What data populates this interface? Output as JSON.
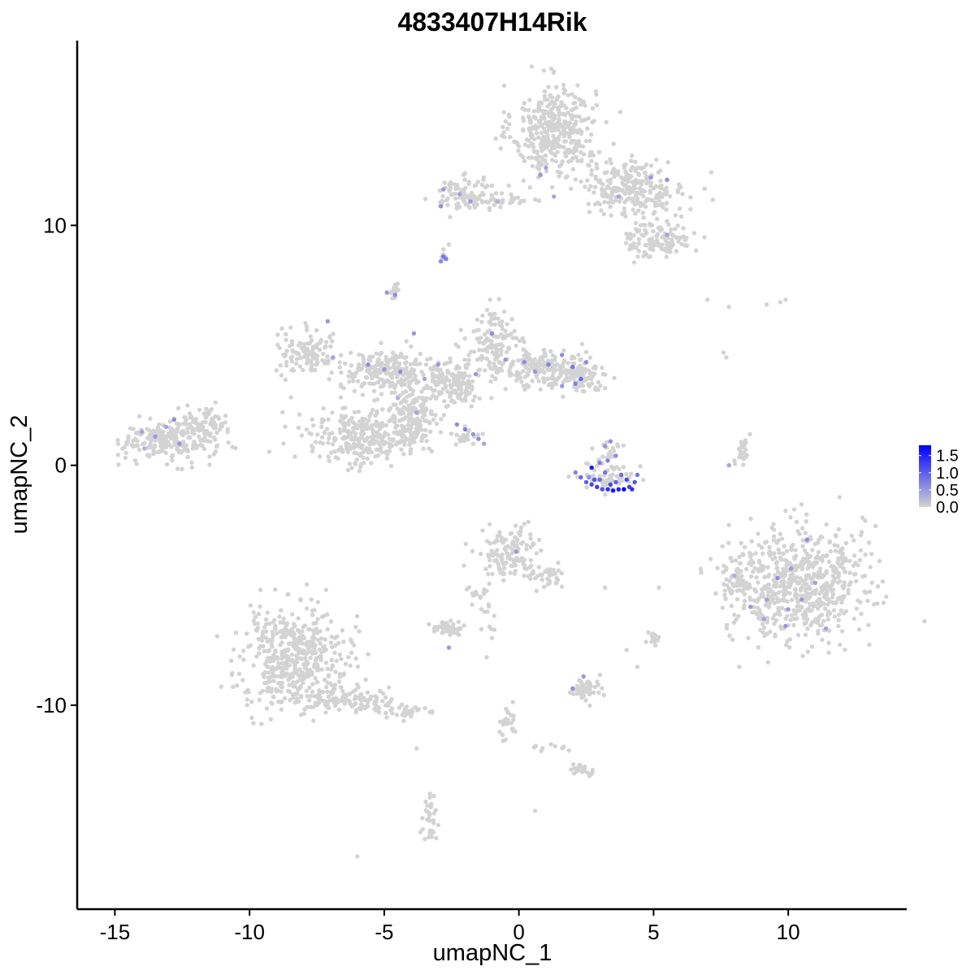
{
  "chart_data": {
    "type": "scatter",
    "title": "4833407H14Rik",
    "xlabel": "umapNC_1",
    "ylabel": "umapNC_2",
    "xlim": [
      -16.4,
      14.4
    ],
    "ylim": [
      -18.5,
      17.7
    ],
    "x_ticks": [
      -15,
      -10,
      -5,
      0,
      5,
      10
    ],
    "x_tick_labels": [
      "-15",
      "-10",
      "-5",
      "0",
      "5",
      "10"
    ],
    "y_ticks": [
      -10,
      0,
      10
    ],
    "y_tick_labels": [
      "-10",
      "0",
      "10"
    ],
    "grid": false,
    "legend_position": "right",
    "color_scale": {
      "low_color": "#d3d3d3",
      "high_color": "#0000ff",
      "min": 0,
      "max": 1.8,
      "ticks": [
        0.0,
        0.5,
        1.0,
        1.5
      ],
      "tick_labels": [
        "0.0",
        "0.5",
        "1.0",
        "1.5"
      ]
    },
    "clusters": [
      {
        "cx": 1.3,
        "cy": 14.0,
        "sx": 0.9,
        "sy": 1.1,
        "n": 380
      },
      {
        "cx": 4.2,
        "cy": 11.6,
        "sx": 1.2,
        "sy": 0.7,
        "n": 250
      },
      {
        "cx": 5.2,
        "cy": 9.4,
        "sx": 0.7,
        "sy": 0.45,
        "n": 120
      },
      {
        "cx": -1.9,
        "cy": 11.3,
        "sx": 0.8,
        "sy": 0.4,
        "n": 100
      },
      {
        "cx": -0.6,
        "cy": 11.0,
        "sx": 1.0,
        "sy": 0.12,
        "n": 30
      },
      {
        "cx": -2.8,
        "cy": 8.7,
        "sx": 0.06,
        "sy": 0.07,
        "n": 12
      },
      {
        "cx": -4.6,
        "cy": 7.3,
        "sx": 0.1,
        "sy": 0.2,
        "n": 15
      },
      {
        "cx": -13.0,
        "cy": 1.0,
        "sx": 1.0,
        "sy": 0.5,
        "n": 220
      },
      {
        "cx": -11.7,
        "cy": 1.8,
        "sx": 0.5,
        "sy": 0.4,
        "n": 70
      },
      {
        "cx": -7.8,
        "cy": 4.7,
        "sx": 0.7,
        "sy": 0.55,
        "n": 110
      },
      {
        "cx": -4.8,
        "cy": 3.9,
        "sx": 1.1,
        "sy": 0.45,
        "n": 220
      },
      {
        "cx": -6.0,
        "cy": 1.2,
        "sx": 1.2,
        "sy": 0.75,
        "n": 260
      },
      {
        "cx": -4.0,
        "cy": 1.8,
        "sx": 0.55,
        "sy": 0.9,
        "n": 150
      },
      {
        "cx": -2.6,
        "cy": 3.3,
        "sx": 0.7,
        "sy": 0.5,
        "n": 150
      },
      {
        "cx": -1.0,
        "cy": 5.0,
        "sx": 0.6,
        "sy": 0.8,
        "n": 130
      },
      {
        "cx": 0.9,
        "cy": 4.0,
        "sx": 0.9,
        "sy": 0.45,
        "n": 160
      },
      {
        "cx": 2.2,
        "cy": 3.8,
        "sx": 0.5,
        "sy": 0.45,
        "n": 90
      },
      {
        "cx": -1.8,
        "cy": 1.2,
        "sx": 0.4,
        "sy": 0.2,
        "n": 22
      },
      {
        "cx": 3.4,
        "cy": -0.5,
        "sx": 0.55,
        "sy": 0.35,
        "n": 60
      },
      {
        "cx": 3.4,
        "cy": 0.5,
        "sx": 0.25,
        "sy": 0.4,
        "n": 25
      },
      {
        "cx": 8.3,
        "cy": 0.6,
        "sx": 0.15,
        "sy": 0.4,
        "n": 25
      },
      {
        "cx": 10.3,
        "cy": -4.9,
        "sx": 1.5,
        "sy": 1.4,
        "n": 650
      },
      {
        "cx": 8.0,
        "cy": -4.9,
        "sx": 0.25,
        "sy": 0.6,
        "n": 30
      },
      {
        "cx": -0.3,
        "cy": -3.7,
        "sx": 0.7,
        "sy": 0.6,
        "n": 130
      },
      {
        "cx": 1.1,
        "cy": -4.6,
        "sx": 0.4,
        "sy": 0.35,
        "n": 35
      },
      {
        "cx": -1.3,
        "cy": -5.6,
        "sx": 0.35,
        "sy": 0.6,
        "n": 25
      },
      {
        "cx": -2.6,
        "cy": -6.8,
        "sx": 0.35,
        "sy": 0.15,
        "n": 45
      },
      {
        "cx": -8.3,
        "cy": -8.0,
        "sx": 1.2,
        "sy": 1.2,
        "n": 500
      },
      {
        "cx": -6.0,
        "cy": -9.8,
        "sx": 1.1,
        "sy": 0.3,
        "n": 90
      },
      {
        "cx": -4.3,
        "cy": -10.3,
        "sx": 0.5,
        "sy": 0.15,
        "n": 30
      },
      {
        "cx": 2.5,
        "cy": -9.3,
        "sx": 0.4,
        "sy": 0.25,
        "n": 50
      },
      {
        "cx": 5.0,
        "cy": -7.2,
        "sx": 0.15,
        "sy": 0.15,
        "n": 15
      },
      {
        "cx": -0.4,
        "cy": -10.8,
        "sx": 0.2,
        "sy": 0.55,
        "n": 25
      },
      {
        "cx": 2.3,
        "cy": -12.7,
        "sx": 0.3,
        "sy": 0.12,
        "n": 22
      },
      {
        "cx": -3.3,
        "cy": -14.9,
        "sx": 0.15,
        "sy": 0.55,
        "n": 30
      },
      {
        "cx": 1.0,
        "cy": -11.8,
        "sx": 0.5,
        "sy": 0.1,
        "n": 10
      }
    ],
    "scattered_points": [
      {
        "x": 7.0,
        "y": 6.9,
        "value": 0
      },
      {
        "x": 7.8,
        "y": 6.6,
        "value": 0
      },
      {
        "x": 9.2,
        "y": 6.7,
        "value": 0
      },
      {
        "x": 9.7,
        "y": 6.8,
        "value": 0
      },
      {
        "x": 9.9,
        "y": 6.9,
        "value": 0
      },
      {
        "x": 7.6,
        "y": 4.7,
        "value": 0
      },
      {
        "x": 7.7,
        "y": 4.5,
        "value": 0
      },
      {
        "x": 5.2,
        "y": -5.1,
        "value": 0
      },
      {
        "x": 4.0,
        "y": -7.7,
        "value": 0
      },
      {
        "x": 3.2,
        "y": -5.1,
        "value": 0
      },
      {
        "x": -1.0,
        "y": -7.2,
        "value": 0
      },
      {
        "x": -1.2,
        "y": -8.0,
        "value": 0
      },
      {
        "x": -6.0,
        "y": -16.3,
        "value": 0
      },
      {
        "x": 0.6,
        "y": -14.4,
        "value": 0
      },
      {
        "x": -3.8,
        "y": -11.8,
        "value": 0
      },
      {
        "x": -2.6,
        "y": 9.2,
        "value": 0
      },
      {
        "x": -2.8,
        "y": 9.0,
        "value": 0
      },
      {
        "x": 4.4,
        "y": -8.4,
        "value": 0
      }
    ],
    "expressing_points": [
      {
        "x": 2.1,
        "y": -0.3,
        "value": 0.7
      },
      {
        "x": 2.3,
        "y": -0.5,
        "value": 0.9
      },
      {
        "x": 2.5,
        "y": -0.7,
        "value": 1.0
      },
      {
        "x": 2.7,
        "y": -0.8,
        "value": 1.2
      },
      {
        "x": 2.9,
        "y": -0.9,
        "value": 1.3
      },
      {
        "x": 3.1,
        "y": -1.0,
        "value": 1.1
      },
      {
        "x": 3.3,
        "y": -1.0,
        "value": 1.4
      },
      {
        "x": 3.5,
        "y": -1.05,
        "value": 1.6
      },
      {
        "x": 3.7,
        "y": -1.0,
        "value": 1.5
      },
      {
        "x": 3.9,
        "y": -1.0,
        "value": 1.8
      },
      {
        "x": 4.1,
        "y": -0.9,
        "value": 1.3
      },
      {
        "x": 4.3,
        "y": -0.7,
        "value": 1.1
      },
      {
        "x": 4.4,
        "y": -0.4,
        "value": 0.8
      },
      {
        "x": 2.6,
        "y": -0.5,
        "value": 0.6
      },
      {
        "x": 3.0,
        "y": -0.6,
        "value": 0.9
      },
      {
        "x": 3.6,
        "y": -0.7,
        "value": 1.0
      },
      {
        "x": 4.0,
        "y": -0.6,
        "value": 1.2
      },
      {
        "x": 3.2,
        "y": -0.3,
        "value": 0.8
      },
      {
        "x": 3.8,
        "y": -0.4,
        "value": 0.9
      },
      {
        "x": 2.7,
        "y": -0.1,
        "value": 1.6
      },
      {
        "x": 3.3,
        "y": 0.2,
        "value": 0.7
      },
      {
        "x": 3.6,
        "y": 0.4,
        "value": 0.6
      },
      {
        "x": 3.2,
        "y": 0.8,
        "value": 0.5
      },
      {
        "x": 3.4,
        "y": 1.0,
        "value": 0.6
      },
      {
        "x": 3.0,
        "y": 0.1,
        "value": 0.7
      },
      {
        "x": 4.2,
        "y": -1.0,
        "value": 1.4
      },
      {
        "x": 2.8,
        "y": -0.6,
        "value": 1.1
      },
      {
        "x": 3.4,
        "y": -0.8,
        "value": 1.2
      },
      {
        "x": -2.8,
        "y": 8.7,
        "value": 0.8
      },
      {
        "x": -2.7,
        "y": 8.6,
        "value": 0.7
      },
      {
        "x": -2.9,
        "y": 8.5,
        "value": 0.6
      },
      {
        "x": -2.3,
        "y": 1.7,
        "value": 0.6
      },
      {
        "x": -2.0,
        "y": 1.5,
        "value": 0.7
      },
      {
        "x": -1.7,
        "y": 1.3,
        "value": 0.5
      },
      {
        "x": -1.5,
        "y": 1.1,
        "value": 0.6
      },
      {
        "x": -1.3,
        "y": 0.9,
        "value": 0.4
      },
      {
        "x": -2.8,
        "y": 11.5,
        "value": 0.5
      },
      {
        "x": -2.2,
        "y": 11.3,
        "value": 0.4
      },
      {
        "x": -1.8,
        "y": 11.0,
        "value": 0.5
      },
      {
        "x": -2.9,
        "y": 10.8,
        "value": 0.6
      },
      {
        "x": 1.0,
        "y": 12.4,
        "value": 0.4
      },
      {
        "x": 0.8,
        "y": 12.1,
        "value": 0.5
      },
      {
        "x": 1.3,
        "y": 11.2,
        "value": 0.4
      },
      {
        "x": 4.9,
        "y": 12.0,
        "value": 0.5
      },
      {
        "x": 5.5,
        "y": 11.9,
        "value": 0.6
      },
      {
        "x": 5.5,
        "y": 9.6,
        "value": 0.4
      },
      {
        "x": 3.7,
        "y": 11.2,
        "value": 0.4
      },
      {
        "x": -0.8,
        "y": 11.0,
        "value": 0.3
      },
      {
        "x": -4.9,
        "y": 7.2,
        "value": 0.5
      },
      {
        "x": -4.6,
        "y": 7.1,
        "value": 0.6
      },
      {
        "x": -7.1,
        "y": 6.0,
        "value": 0.5
      },
      {
        "x": -6.9,
        "y": 4.5,
        "value": 0.4
      },
      {
        "x": -5.6,
        "y": 4.2,
        "value": 0.6
      },
      {
        "x": -5.0,
        "y": 4.0,
        "value": 0.5
      },
      {
        "x": -4.4,
        "y": 3.9,
        "value": 0.6
      },
      {
        "x": -3.5,
        "y": 3.6,
        "value": 0.4
      },
      {
        "x": -3.0,
        "y": 4.2,
        "value": 0.5
      },
      {
        "x": -1.6,
        "y": 3.8,
        "value": 0.5
      },
      {
        "x": -1.0,
        "y": 5.5,
        "value": 0.6
      },
      {
        "x": -0.5,
        "y": 4.4,
        "value": 0.5
      },
      {
        "x": 0.2,
        "y": 4.3,
        "value": 0.6
      },
      {
        "x": 0.6,
        "y": 3.9,
        "value": 0.5
      },
      {
        "x": 1.1,
        "y": 4.2,
        "value": 0.7
      },
      {
        "x": 1.6,
        "y": 4.6,
        "value": 0.6
      },
      {
        "x": 2.0,
        "y": 4.1,
        "value": 0.8
      },
      {
        "x": 2.3,
        "y": 3.6,
        "value": 0.9
      },
      {
        "x": 2.1,
        "y": 3.4,
        "value": 0.7
      },
      {
        "x": 2.5,
        "y": 4.3,
        "value": 0.6
      },
      {
        "x": -3.9,
        "y": 5.5,
        "value": 0.5
      },
      {
        "x": 1.6,
        "y": 3.3,
        "value": 0.5
      },
      {
        "x": -13.5,
        "y": 1.2,
        "value": 0.5
      },
      {
        "x": -12.8,
        "y": 1.9,
        "value": 0.6
      },
      {
        "x": -12.6,
        "y": 0.9,
        "value": 0.5
      },
      {
        "x": -13.1,
        "y": 1.6,
        "value": 0.4
      },
      {
        "x": -14.0,
        "y": 1.4,
        "value": 0.4
      },
      {
        "x": -13.9,
        "y": 0.7,
        "value": 0.3
      },
      {
        "x": -3.8,
        "y": 2.2,
        "value": 0.4
      },
      {
        "x": -4.5,
        "y": 2.8,
        "value": 0.3
      },
      {
        "x": 7.8,
        "y": 0.0,
        "value": 0.4
      },
      {
        "x": 10.7,
        "y": -3.1,
        "value": 0.6
      },
      {
        "x": 10.1,
        "y": -4.3,
        "value": 0.5
      },
      {
        "x": 9.6,
        "y": -4.7,
        "value": 0.6
      },
      {
        "x": 10.5,
        "y": -5.6,
        "value": 0.5
      },
      {
        "x": 9.2,
        "y": -5.6,
        "value": 0.4
      },
      {
        "x": 8.6,
        "y": -5.9,
        "value": 0.5
      },
      {
        "x": 11.4,
        "y": -6.8,
        "value": 0.4
      },
      {
        "x": 10.0,
        "y": -6.0,
        "value": 0.5
      },
      {
        "x": 9.1,
        "y": -6.4,
        "value": 0.4
      },
      {
        "x": 9.9,
        "y": -6.7,
        "value": 0.5
      },
      {
        "x": 11.0,
        "y": -4.9,
        "value": 0.4
      },
      {
        "x": 8.0,
        "y": -4.6,
        "value": 0.3
      },
      {
        "x": -0.1,
        "y": -3.6,
        "value": 0.5
      },
      {
        "x": -2.6,
        "y": -7.6,
        "value": 0.5
      },
      {
        "x": 2.0,
        "y": -9.3,
        "value": 0.6
      },
      {
        "x": 2.4,
        "y": -8.8,
        "value": 0.5
      }
    ]
  }
}
